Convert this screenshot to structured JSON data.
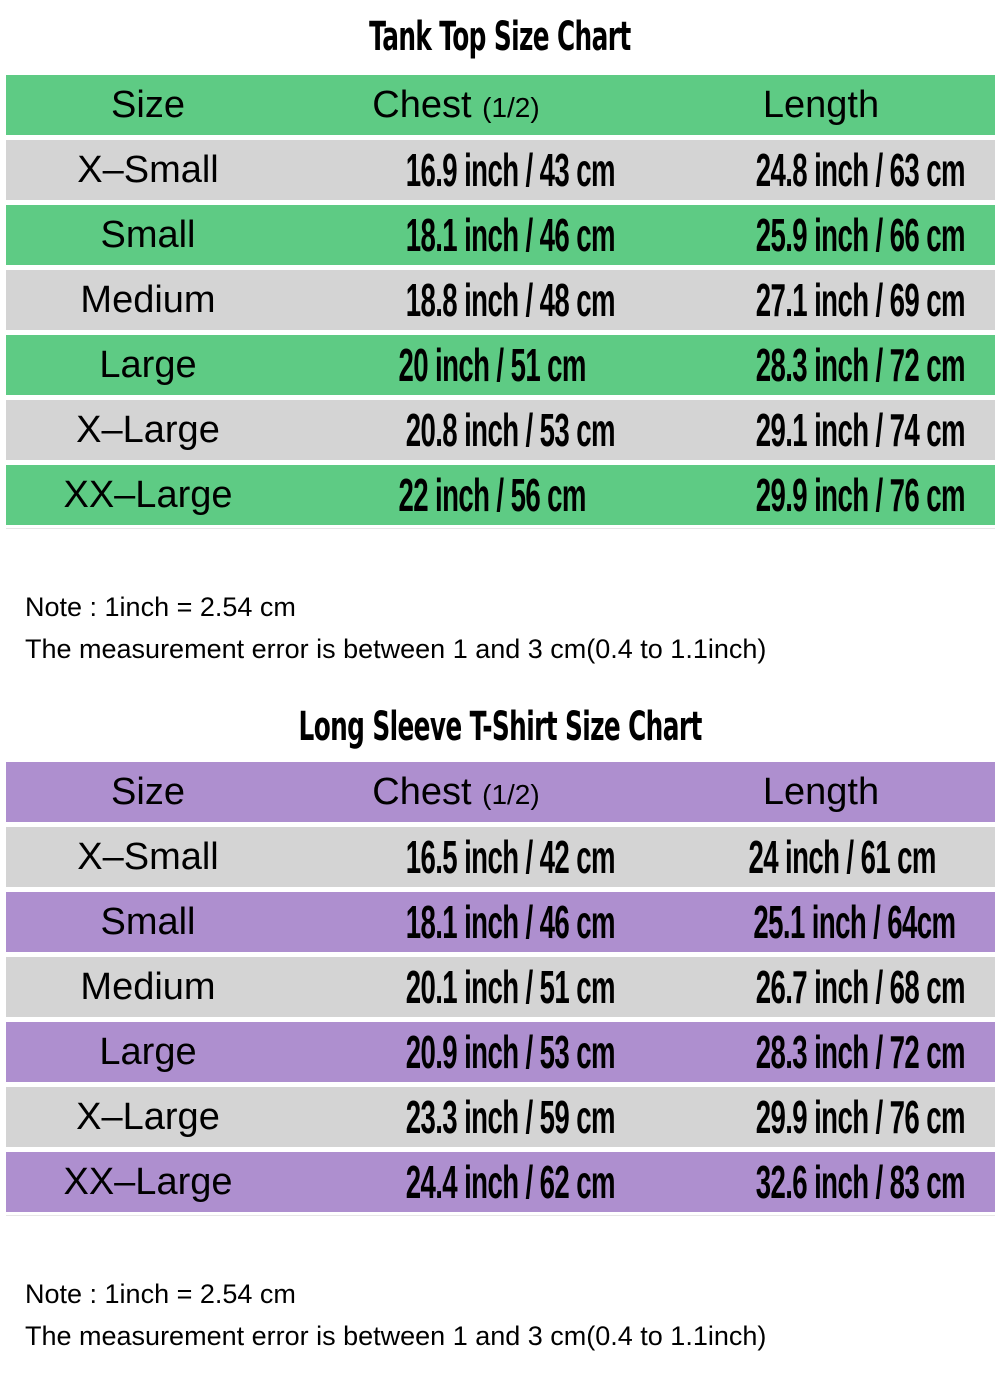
{
  "colors": {
    "tank_accent": "#5ecb84",
    "longsleeve_accent": "#ae8fcf",
    "alt_row": "#d4d4d4"
  },
  "tables": [
    {
      "title": "Tank Top Size Chart",
      "accent": "#5ecb84",
      "headers": {
        "size": "Size",
        "chest": "Chest",
        "chest_sub": "(1/2)",
        "length": "Length"
      },
      "rows": [
        {
          "size": "X–Small",
          "chest": "16.9 inch / 43 cm",
          "length": "24.8 inch / 63 cm"
        },
        {
          "size": "Small",
          "chest": "18.1 inch / 46 cm",
          "length": "25.9 inch / 66 cm"
        },
        {
          "size": "Medium",
          "chest": "18.8 inch / 48 cm",
          "length": "27.1 inch / 69 cm"
        },
        {
          "size": "Large",
          "chest": "20 inch / 51 cm",
          "length": "28.3 inch / 72 cm"
        },
        {
          "size": "X–Large",
          "chest": "20.8 inch / 53 cm",
          "length": "29.1 inch / 74 cm"
        },
        {
          "size": "XX–Large",
          "chest": "22 inch / 56 cm",
          "length": "29.9 inch / 76 cm"
        }
      ],
      "note_line1": "Note : 1inch = 2.54 cm",
      "note_line2": "The measurement error is between 1 and 3 cm(0.4 to 1.1inch)"
    },
    {
      "title": "Long Sleeve T-Shirt Size Chart",
      "accent": "#ae8fcf",
      "headers": {
        "size": "Size",
        "chest": "Chest",
        "chest_sub": "(1/2)",
        "length": "Length"
      },
      "rows": [
        {
          "size": "X–Small",
          "chest": "16.5 inch / 42 cm",
          "length": "24 inch / 61 cm"
        },
        {
          "size": "Small",
          "chest": "18.1 inch / 46 cm",
          "length": "25.1 inch / 64cm"
        },
        {
          "size": "Medium",
          "chest": "20.1 inch / 51 cm",
          "length": "26.7 inch / 68 cm"
        },
        {
          "size": "Large",
          "chest": "20.9 inch / 53 cm",
          "length": "28.3 inch / 72 cm"
        },
        {
          "size": "X–Large",
          "chest": "23.3 inch / 59 cm",
          "length": "29.9 inch / 76 cm"
        },
        {
          "size": "XX–Large",
          "chest": "24.4 inch / 62 cm",
          "length": "32.6 inch / 83 cm"
        }
      ],
      "note_line1": "Note : 1inch = 2.54 cm",
      "note_line2": "The measurement error is between 1 and 3 cm(0.4 to 1.1inch)"
    }
  ]
}
